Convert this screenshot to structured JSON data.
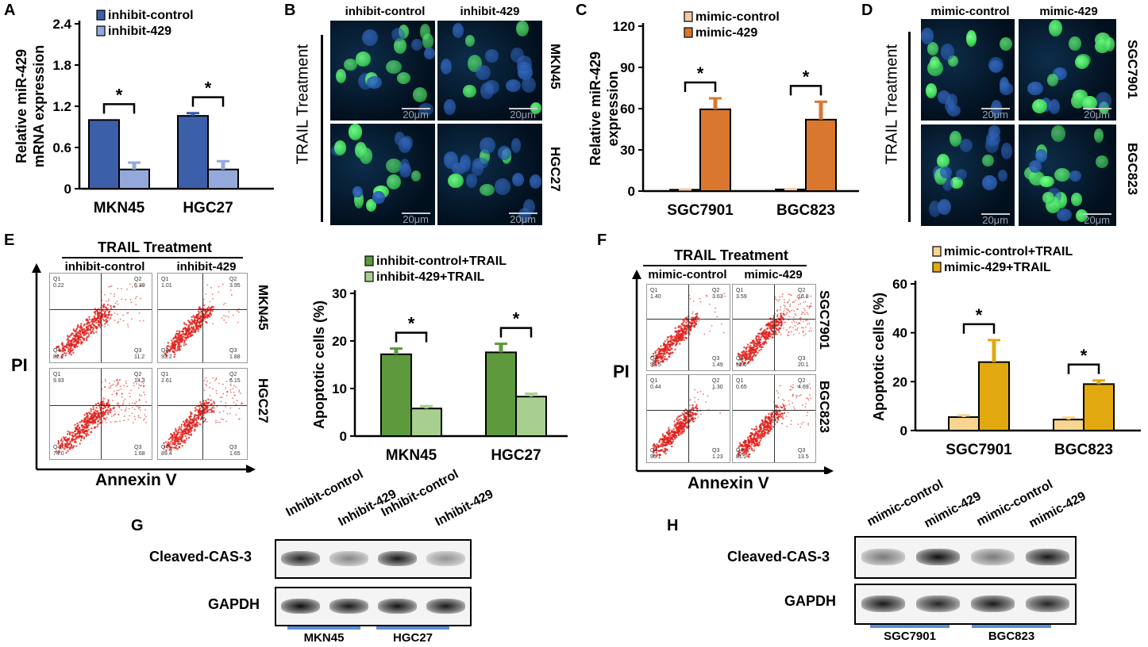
{
  "panel_labels": {
    "A": "A",
    "B": "B",
    "C": "C",
    "D": "D",
    "E": "E",
    "F": "F",
    "G": "G",
    "H": "H"
  },
  "panel_b": {
    "col_labels": [
      "inhibit-control",
      "inhibit-429"
    ],
    "row_labels": [
      "MKN45",
      "HGC27"
    ],
    "side_label": "TRAIL Treatment",
    "scale": "20μm"
  },
  "panel_d": {
    "col_labels": [
      "mimic-control",
      "mimic-429"
    ],
    "row_labels": [
      "SGC7901",
      "BGC823"
    ],
    "side_label": "TRAIL Treatment",
    "scale": "20μm"
  },
  "panel_e": {
    "header": "TRAIL Treatment",
    "col_labels": [
      "inhibit-control",
      "inhibit-429"
    ],
    "row_labels": [
      "MKN45",
      "HGC27"
    ],
    "y_axis": "PI",
    "x_axis": "Annexin V",
    "quadrants": [
      {
        "q1": "Q1",
        "q1v": "0.22",
        "q2": "Q2",
        "q2v": "6.39",
        "q3": "Q3",
        "q3v": "11.2",
        "q4": "Q4",
        "q4v": "82.2"
      },
      {
        "q1": "Q1",
        "q1v": "1.01",
        "q2": "Q2",
        "q2v": "3.95",
        "q3": "Q3",
        "q3v": "1.88",
        "q4": "Q4",
        "q4v": "93.2"
      },
      {
        "q1": "Q1",
        "q1v": "9.93",
        "q2": "Q2",
        "q2v": "14.3",
        "q3": "Q3",
        "q3v": "1.68",
        "q4": "Q4",
        "q4v": "74.0"
      },
      {
        "q1": "Q1",
        "q1v": "2.61",
        "q2": "Q2",
        "q2v": "6.15",
        "q3": "Q3",
        "q3v": "1.65",
        "q4": "Q4",
        "q4v": "89.4"
      }
    ]
  },
  "panel_f": {
    "header": "TRAIL Treatment",
    "col_labels": [
      "mimic-control",
      "mimic-429"
    ],
    "row_labels": [
      "SGC7901",
      "BGC823"
    ],
    "y_axis": "PI",
    "x_axis": "Annexin V",
    "quadrants": [
      {
        "q1": "Q1",
        "q1v": "1.40",
        "q2": "Q2",
        "q2v": "3.63",
        "q3": "Q3",
        "q3v": "1.49",
        "q4": "Q4",
        "q4v": "93.5"
      },
      {
        "q1": "Q1",
        "q1v": "3.59",
        "q2": "Q2",
        "q2v": "16.8",
        "q3": "Q3",
        "q3v": "20.1",
        "q4": "Q4",
        "q4v": "59.6"
      },
      {
        "q1": "Q1",
        "q1v": "0.44",
        "q2": "Q2",
        "q2v": "1.30",
        "q3": "Q3",
        "q3v": "1.23",
        "q4": "Q4",
        "q4v": "96.1"
      },
      {
        "q1": "Q1",
        "q1v": "0.65",
        "q2": "Q2",
        "q2v": "4.69",
        "q3": "Q3",
        "q3v": "13.5",
        "q4": "Q4",
        "q4v": "81.2"
      }
    ]
  },
  "panel_g": {
    "lanes": [
      "Inhibit-control",
      "Inhibit-429",
      "Inhibit-control",
      "Inhibit-429"
    ],
    "rows": [
      "Cleaved-CAS-3",
      "GAPDH"
    ],
    "groups": [
      "MKN45",
      "HGC27"
    ]
  },
  "panel_h": {
    "lanes": [
      "mimic-control",
      "mimic-429",
      "mimic-control",
      "mimic-429"
    ],
    "rows": [
      "Cleaved-CAS-3",
      "GAPDH"
    ],
    "groups": [
      "SGC7901",
      "BGC823"
    ]
  },
  "colors": {
    "a_control": "#3b5fa8",
    "a_treat": "#93a9dc",
    "c_control": "#f3c9a8",
    "c_treat": "#d9772f",
    "e_control": "#5e9a3d",
    "e_treat": "#a8cf8f",
    "f_control": "#f7d590",
    "f_treat": "#e1a90f",
    "green_nuc": "#3ddc5a",
    "blue_nuc": "#2456a8",
    "flow": "#e0201b",
    "underline": "#5b8fd6"
  },
  "chart_data": [
    {
      "id": "A",
      "type": "bar",
      "title": "",
      "categories": [
        "MKN45",
        "HGC27"
      ],
      "series": [
        {
          "name": "inhibit-control",
          "values": [
            1.0,
            1.06
          ],
          "errors": [
            0.0,
            0.04
          ]
        },
        {
          "name": "inhibit-429",
          "values": [
            0.28,
            0.28
          ],
          "errors": [
            0.1,
            0.12
          ]
        }
      ],
      "ylabel": "Relative miR-429 mRNA expression",
      "xlabel": "",
      "ylim": [
        0,
        2.4
      ],
      "yticks": [
        "0",
        "0.6",
        "1.2",
        "1.8",
        "2.4"
      ],
      "significance": [
        "*",
        "*"
      ],
      "legend": "top-left"
    },
    {
      "id": "C",
      "type": "bar",
      "title": "",
      "categories": [
        "SGC7901",
        "BGC823"
      ],
      "series": [
        {
          "name": "mimic-control",
          "values": [
            1.0,
            1.2
          ],
          "errors": [
            0.2,
            0.2
          ]
        },
        {
          "name": "mimic-429",
          "values": [
            59.5,
            52
          ],
          "errors": [
            8,
            13
          ]
        }
      ],
      "ylabel": "Relative miR-429 expression",
      "xlabel": "",
      "ylim": [
        0,
        120
      ],
      "yticks": [
        "0",
        "30",
        "60",
        "90",
        "120"
      ],
      "significance": [
        "*",
        "*"
      ],
      "legend": "top-left"
    },
    {
      "id": "E",
      "type": "bar",
      "title": "",
      "categories": [
        "MKN45",
        "HGC27"
      ],
      "series": [
        {
          "name": "inhibit-control+TRAIL",
          "values": [
            17.2,
            17.6
          ],
          "errors": [
            1.2,
            1.8
          ]
        },
        {
          "name": "inhibit-429+TRAIL",
          "values": [
            5.8,
            8.3
          ],
          "errors": [
            0.5,
            0.6
          ]
        }
      ],
      "ylabel": "Apoptotic cells (%)",
      "xlabel": "",
      "ylim": [
        0,
        30
      ],
      "yticks": [
        "0",
        "10",
        "20",
        "30"
      ],
      "significance": [
        "*",
        "*"
      ],
      "legend": "top-left"
    },
    {
      "id": "F",
      "type": "bar",
      "title": "",
      "categories": [
        "SGC7901",
        "BGC823"
      ],
      "series": [
        {
          "name": "mimic-control+TRAIL",
          "values": [
            5.5,
            4.5
          ],
          "errors": [
            0.7,
            0.8
          ]
        },
        {
          "name": "mimic-429+TRAIL",
          "values": [
            28,
            19
          ],
          "errors": [
            9,
            1.5
          ]
        }
      ],
      "ylabel": "Apoptotic cells (%)",
      "xlabel": "",
      "ylim": [
        0,
        60
      ],
      "yticks": [
        "0",
        "20",
        "40",
        "60"
      ],
      "significance": [
        "*",
        "*"
      ],
      "legend": "top-left"
    }
  ]
}
